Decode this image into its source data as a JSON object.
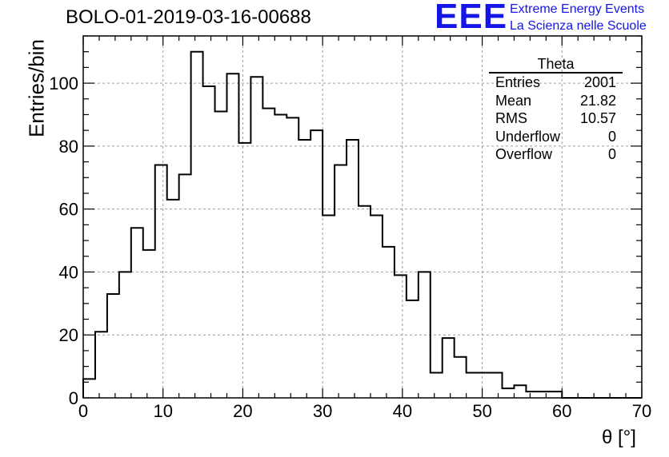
{
  "header": {
    "title": "BOLO-01-2019-03-16-00688",
    "logo_text": "EEE",
    "org_line1": "Extreme Energy Events",
    "org_line2": "La Scienza nelle Scuole",
    "logo_color": "#1515e8"
  },
  "stats": {
    "name": "Theta",
    "rows": [
      {
        "label": "Entries",
        "value": "2001"
      },
      {
        "label": "Mean",
        "value": "21.82"
      },
      {
        "label": "RMS",
        "value": "10.57"
      },
      {
        "label": "Underflow",
        "value": "0"
      },
      {
        "label": "Overflow",
        "value": "0"
      }
    ]
  },
  "chart_data": {
    "type": "histogram",
    "xlabel": "θ [°]",
    "ylabel": "Entries/bin",
    "xlim": [
      0,
      70
    ],
    "ylim": [
      0,
      115
    ],
    "xticks": [
      0,
      10,
      20,
      30,
      40,
      50,
      60,
      70
    ],
    "yticks": [
      0,
      20,
      40,
      60,
      80,
      100
    ],
    "grid": true,
    "bin_width": 1.5,
    "bin_start": 0,
    "values": [
      6,
      21,
      33,
      40,
      54,
      47,
      74,
      63,
      71,
      110,
      99,
      91,
      103,
      81,
      102,
      92,
      90,
      89,
      82,
      85,
      58,
      74,
      82,
      61,
      58,
      48,
      39,
      31,
      40,
      8,
      19,
      13,
      8,
      8,
      8,
      3,
      4,
      2,
      2,
      2,
      0,
      0,
      0,
      0,
      0,
      0,
      0
    ]
  }
}
